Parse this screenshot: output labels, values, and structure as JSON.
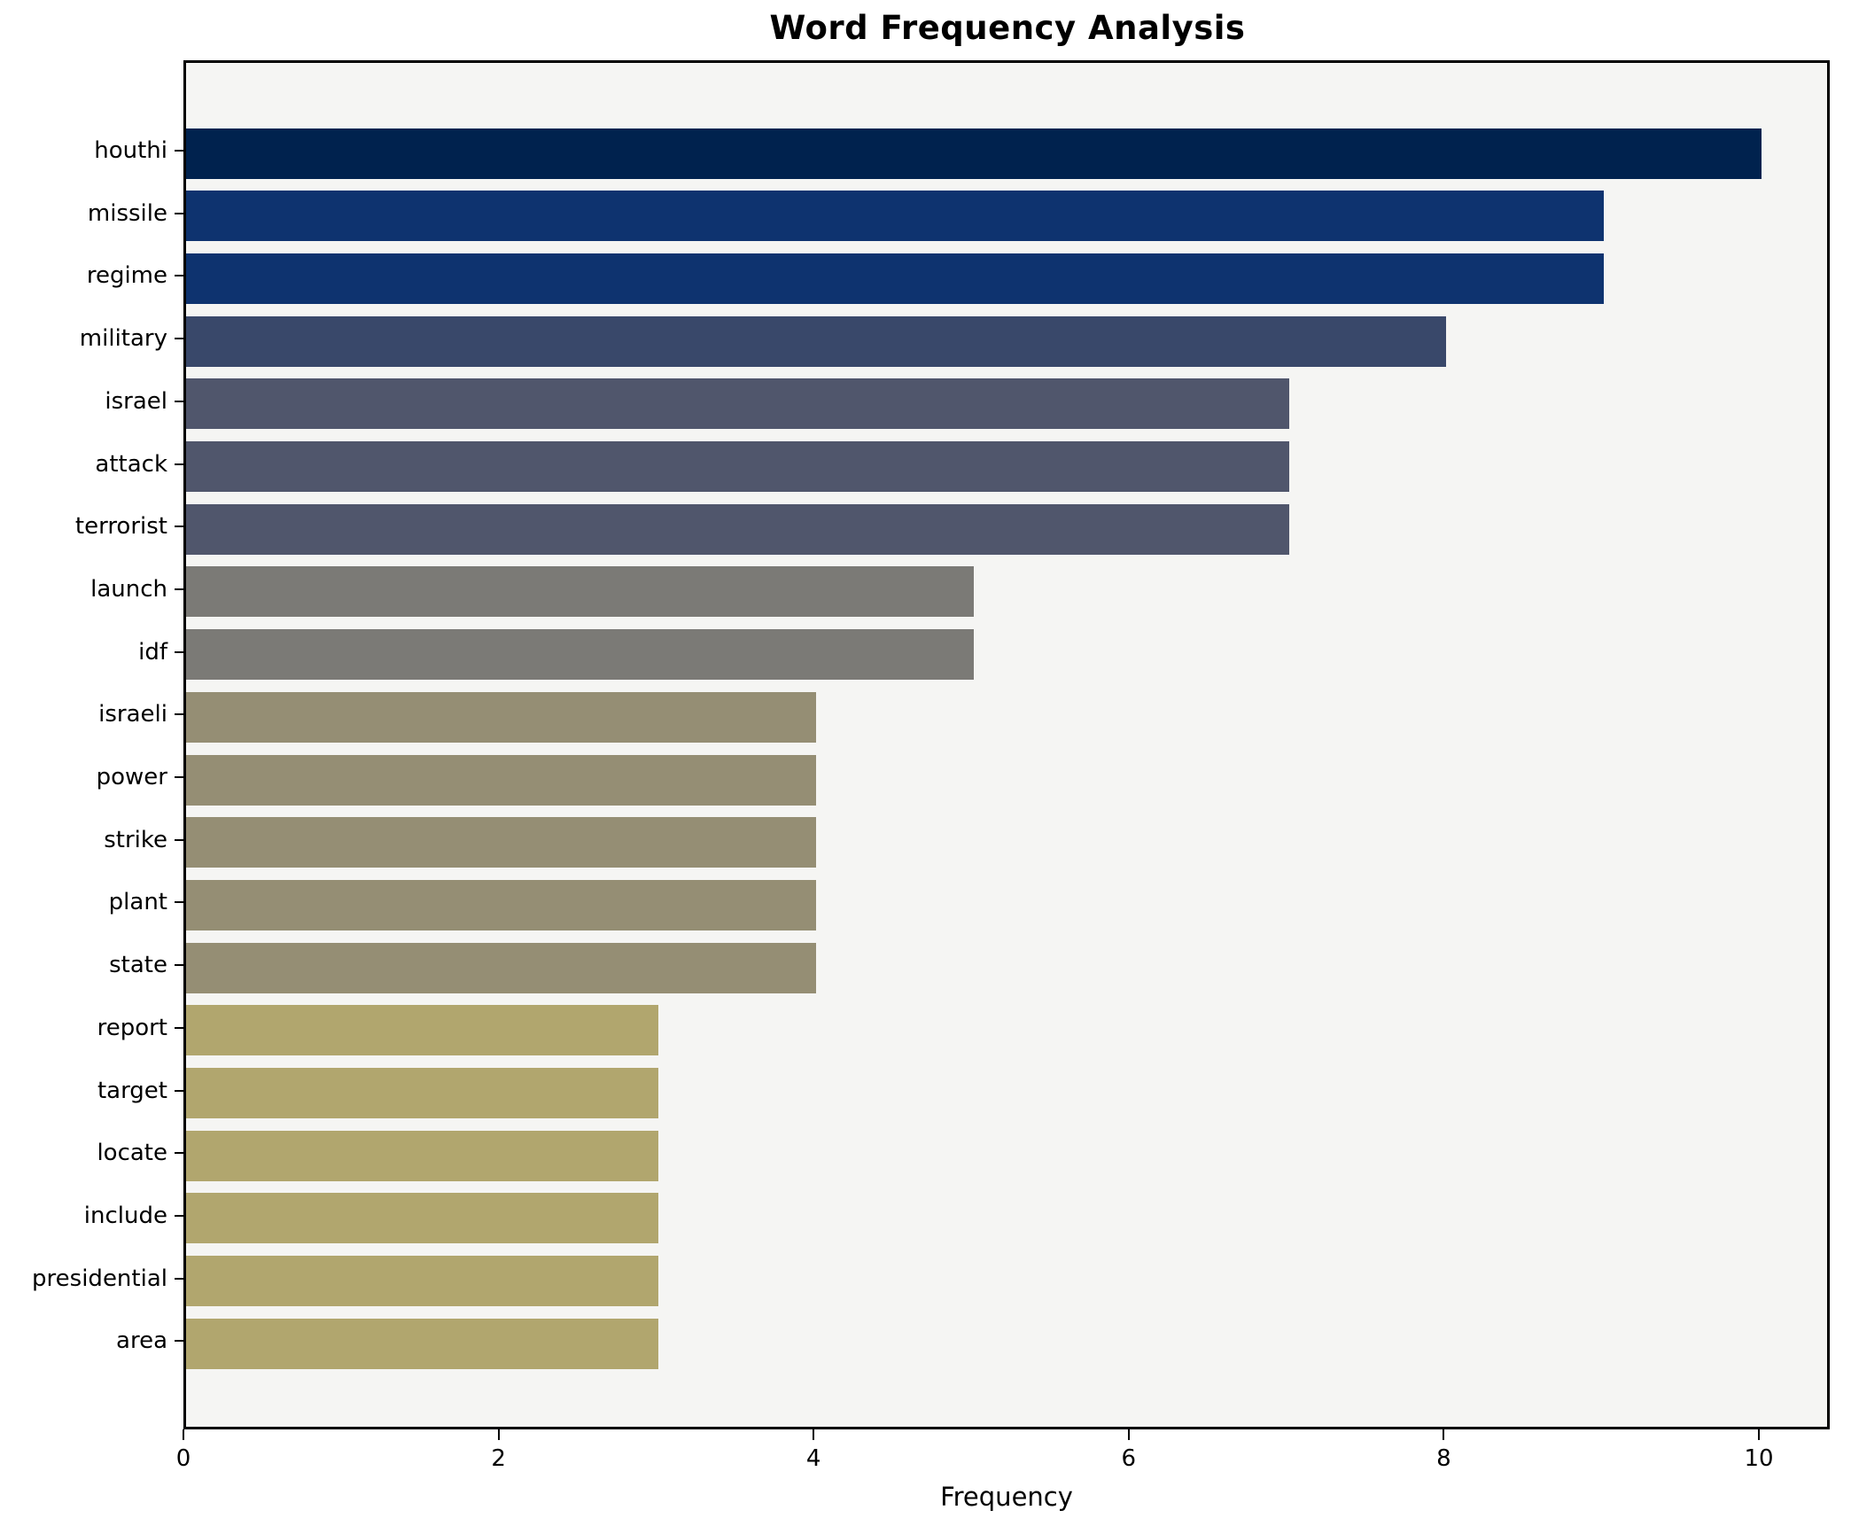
{
  "chart_data": {
    "type": "bar",
    "orientation": "horizontal",
    "title": "Word Frequency Analysis",
    "xlabel": "Frequency",
    "ylabel": "",
    "categories": [
      "houthi",
      "missile",
      "regime",
      "military",
      "israel",
      "attack",
      "terrorist",
      "launch",
      "idf",
      "israeli",
      "power",
      "strike",
      "plant",
      "state",
      "report",
      "target",
      "locate",
      "include",
      "presidential",
      "area"
    ],
    "values": [
      10,
      9,
      9,
      8,
      7,
      7,
      7,
      5,
      5,
      4,
      4,
      4,
      4,
      4,
      3,
      3,
      3,
      3,
      3,
      3
    ],
    "bar_colors": [
      "#00224e",
      "#0e336f",
      "#0e336f",
      "#39486a",
      "#50566c",
      "#50566c",
      "#50566c",
      "#7b7a76",
      "#7b7a76",
      "#958e74",
      "#958e74",
      "#958e74",
      "#958e74",
      "#958e74",
      "#b1a66e",
      "#b1a66e",
      "#b1a66e",
      "#b1a66e",
      "#b1a66e",
      "#b1a66e"
    ],
    "x_ticks": [
      0,
      2,
      4,
      6,
      8,
      10
    ],
    "xlim": [
      0,
      10.45
    ],
    "grid": false,
    "legend_position": "none",
    "plot_background": "#f5f5f3",
    "figure_background": "#ffffff"
  }
}
